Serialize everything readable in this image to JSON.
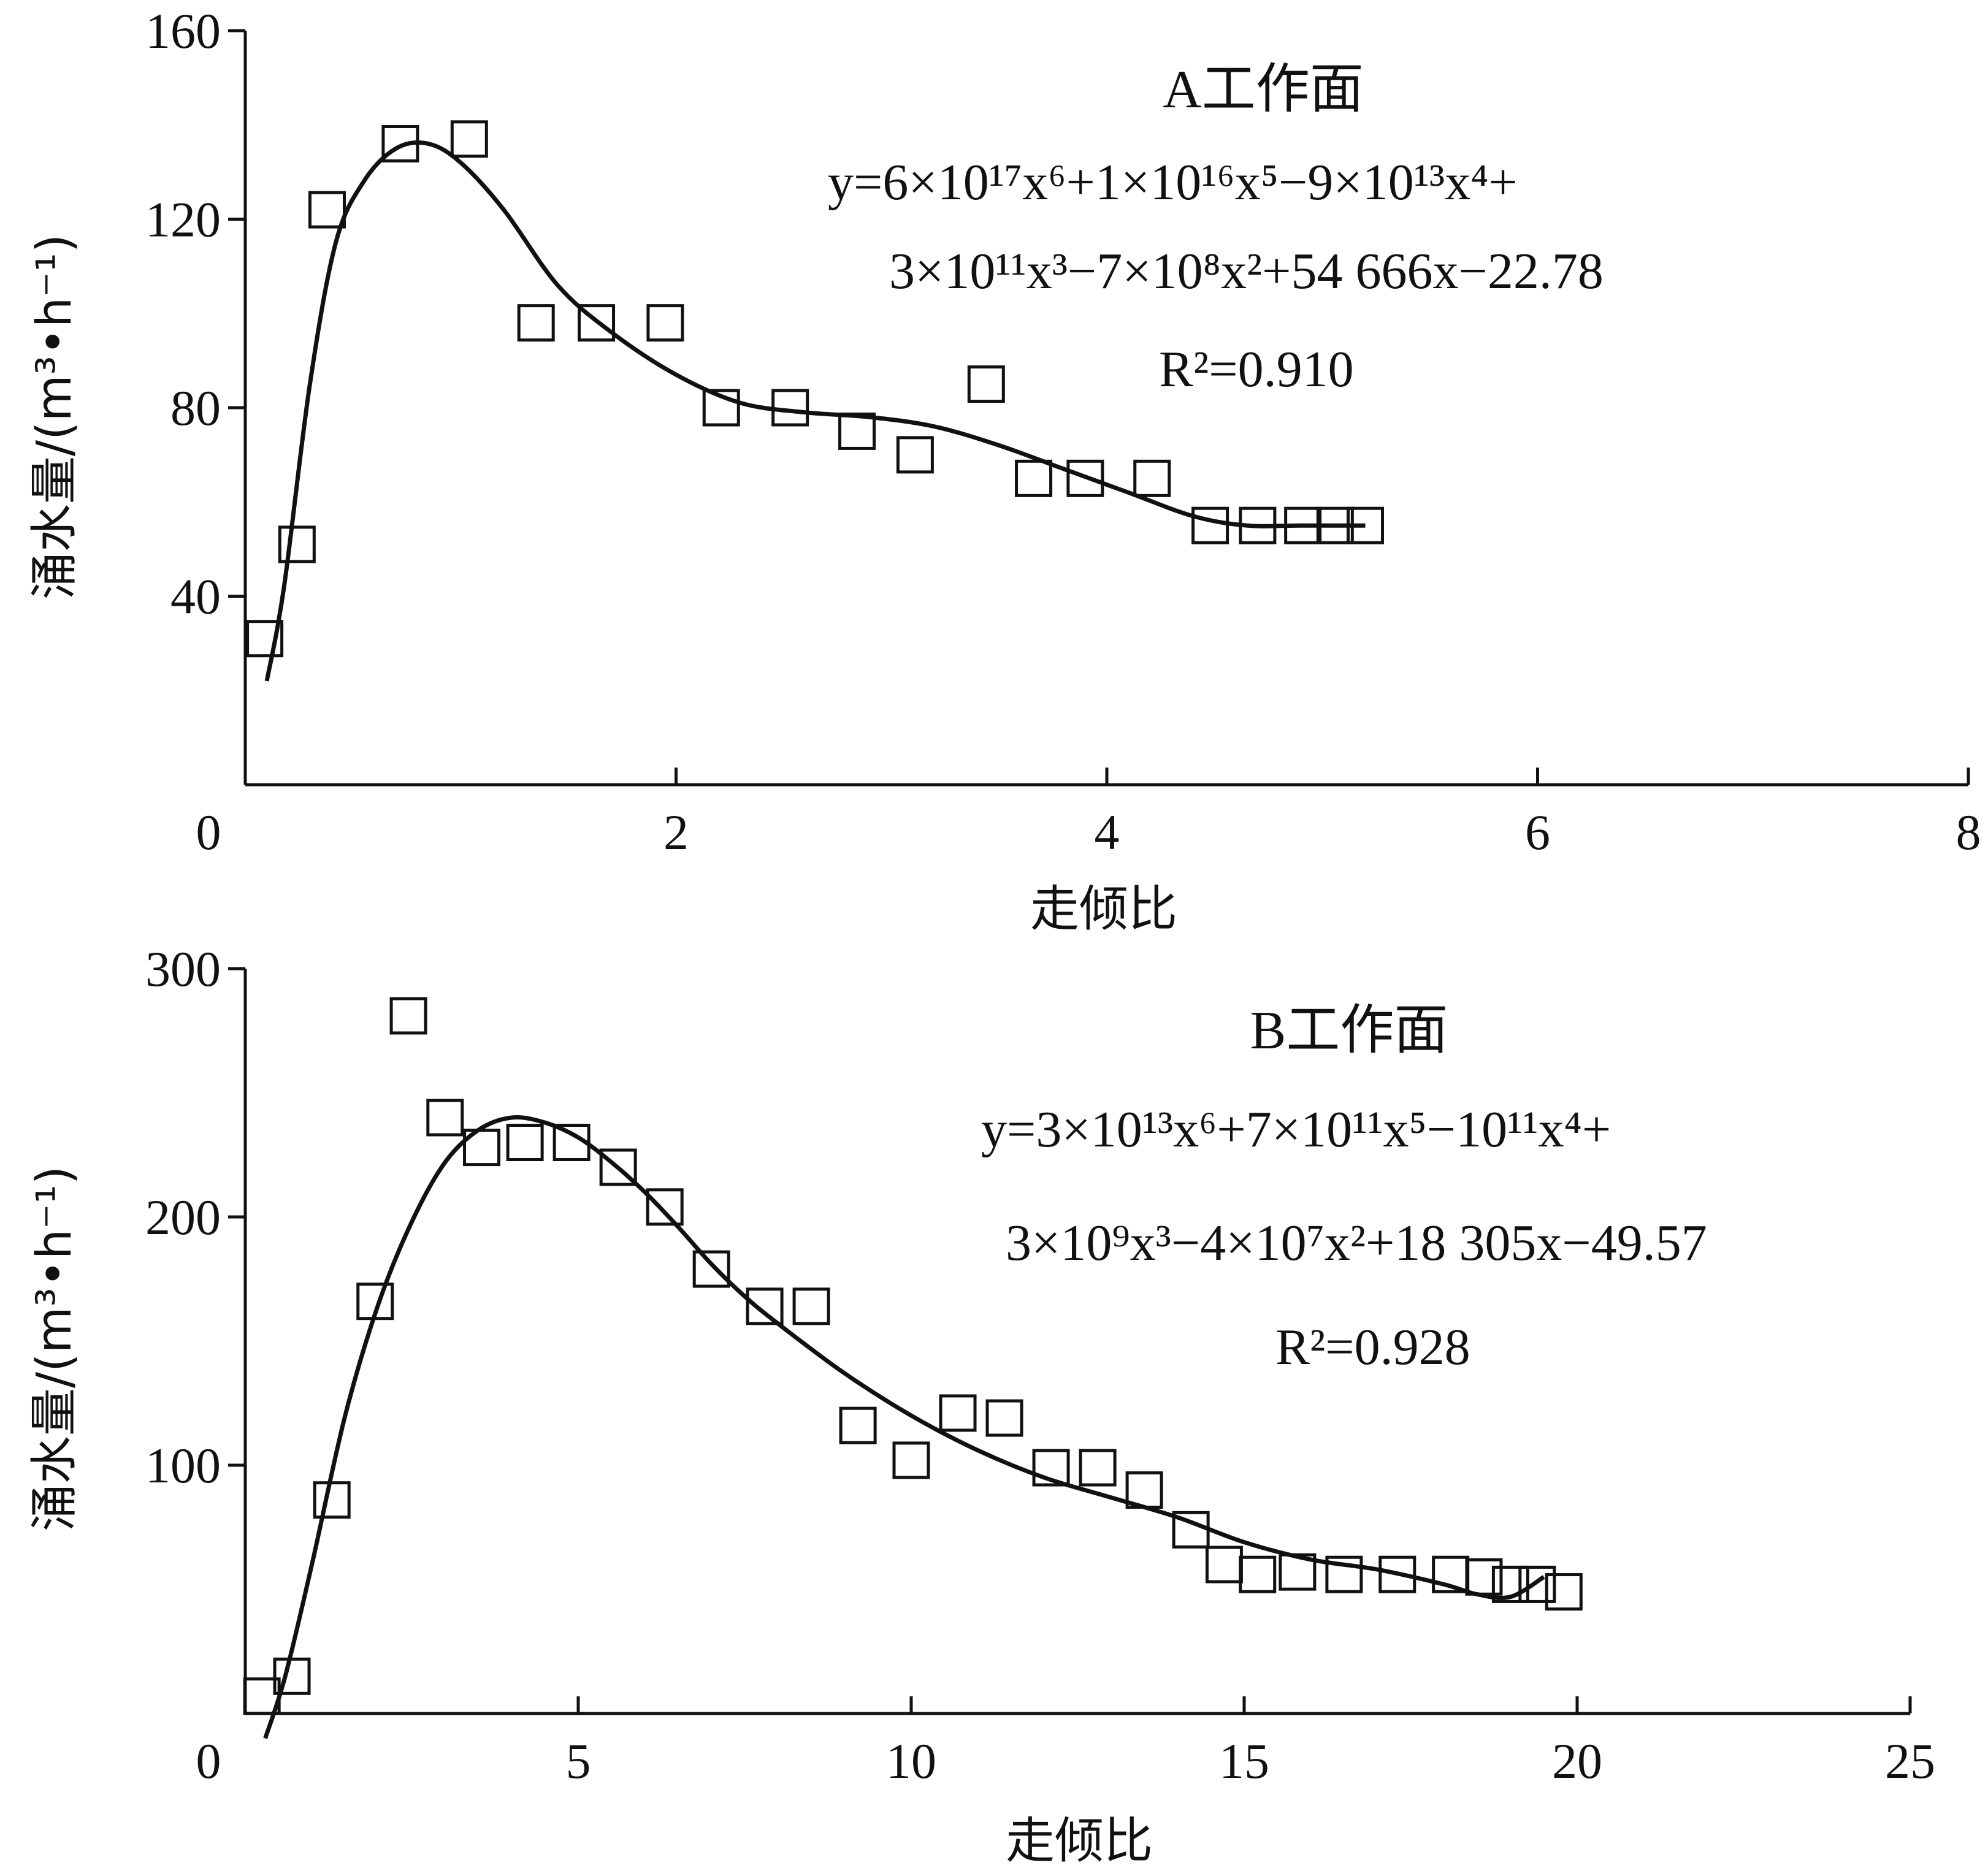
{
  "chart_data": [
    {
      "type": "scatter",
      "title": "A工作面",
      "xlabel": "走倾比",
      "ylabel": "涌水量/(m³•h⁻¹)",
      "xlim": [
        0,
        8
      ],
      "ylim": [
        0,
        160
      ],
      "x_ticks": [
        0,
        2,
        4,
        6,
        8
      ],
      "y_ticks": [
        40,
        80,
        120,
        160
      ],
      "x_tick_labels": [
        "0",
        "2",
        "4",
        "6",
        "8"
      ],
      "y_tick_labels": [
        "40",
        "80",
        "120",
        "160"
      ],
      "equation_line1": "y=6×10¹⁷x⁶+1×10¹⁶x⁵−9×10¹³x⁴+",
      "equation_line2": "3×10¹¹x³−7×10⁸x²+54 666x−22.78",
      "r2": "R²=0.910",
      "points": [
        [
          0.09,
          31
        ],
        [
          0.24,
          51
        ],
        [
          0.38,
          122
        ],
        [
          0.72,
          136
        ],
        [
          1.04,
          137
        ],
        [
          1.35,
          98
        ],
        [
          1.63,
          98
        ],
        [
          1.95,
          98
        ],
        [
          2.21,
          80
        ],
        [
          2.53,
          80
        ],
        [
          2.84,
          75
        ],
        [
          3.11,
          70
        ],
        [
          3.44,
          85
        ],
        [
          3.66,
          65
        ],
        [
          3.9,
          65
        ],
        [
          4.21,
          65
        ],
        [
          4.48,
          55
        ],
        [
          4.7,
          55
        ],
        [
          4.91,
          55
        ],
        [
          5.06,
          55
        ],
        [
          5.2,
          55
        ]
      ],
      "fit_curve": [
        [
          0.1,
          22
        ],
        [
          0.18,
          42
        ],
        [
          0.3,
          85
        ],
        [
          0.42,
          115
        ],
        [
          0.55,
          128
        ],
        [
          0.7,
          135
        ],
        [
          0.85,
          136
        ],
        [
          1.0,
          132
        ],
        [
          1.2,
          122
        ],
        [
          1.45,
          106
        ],
        [
          1.7,
          96
        ],
        [
          2.0,
          87
        ],
        [
          2.3,
          81
        ],
        [
          2.6,
          79
        ],
        [
          2.9,
          78
        ],
        [
          3.2,
          76
        ],
        [
          3.5,
          72
        ],
        [
          3.8,
          67
        ],
        [
          4.1,
          62
        ],
        [
          4.4,
          57
        ],
        [
          4.65,
          55
        ],
        [
          4.9,
          55
        ],
        [
          5.2,
          55
        ]
      ]
    },
    {
      "type": "scatter",
      "title": "B工作面",
      "xlabel": "走倾比",
      "ylabel": "涌水量/(m³•h⁻¹)",
      "xlim": [
        0,
        25
      ],
      "ylim": [
        0,
        300
      ],
      "x_ticks": [
        0,
        5,
        10,
        15,
        20,
        25
      ],
      "y_ticks": [
        100,
        200,
        300
      ],
      "x_tick_labels": [
        "0",
        "5",
        "10",
        "15",
        "20",
        "25"
      ],
      "y_tick_labels": [
        "100",
        "200",
        "300"
      ],
      "equation_line1": "y=3×10¹³x⁶+7×10¹¹x⁵−10¹¹x⁴+",
      "equation_line2": "3×10⁹x³−4×10⁷x²+18 305x−49.57",
      "r2": "R²=0.928",
      "points": [
        [
          0.25,
          7
        ],
        [
          0.7,
          15
        ],
        [
          1.3,
          86
        ],
        [
          1.95,
          166
        ],
        [
          2.45,
          281
        ],
        [
          3.0,
          240
        ],
        [
          3.55,
          228
        ],
        [
          4.2,
          230
        ],
        [
          4.9,
          230
        ],
        [
          5.6,
          220
        ],
        [
          6.3,
          204
        ],
        [
          7.0,
          179
        ],
        [
          7.8,
          164
        ],
        [
          8.5,
          164
        ],
        [
          9.2,
          116
        ],
        [
          10.0,
          102
        ],
        [
          10.7,
          121
        ],
        [
          11.4,
          119
        ],
        [
          12.1,
          99
        ],
        [
          12.8,
          99
        ],
        [
          13.5,
          90
        ],
        [
          14.2,
          74
        ],
        [
          14.7,
          60
        ],
        [
          15.2,
          56
        ],
        [
          15.8,
          57
        ],
        [
          16.5,
          56
        ],
        [
          17.3,
          56
        ],
        [
          18.1,
          56
        ],
        [
          18.6,
          55
        ],
        [
          19.0,
          52
        ],
        [
          19.4,
          52
        ],
        [
          19.8,
          49
        ]
      ],
      "fit_curve": [
        [
          0.3,
          -10
        ],
        [
          0.6,
          15
        ],
        [
          1.0,
          60
        ],
        [
          1.5,
          120
        ],
        [
          2.0,
          165
        ],
        [
          2.5,
          198
        ],
        [
          3.0,
          222
        ],
        [
          3.5,
          235
        ],
        [
          4.0,
          240
        ],
        [
          4.5,
          238
        ],
        [
          5.0,
          232
        ],
        [
          5.5,
          222
        ],
        [
          6.0,
          210
        ],
        [
          6.5,
          196
        ],
        [
          7.0,
          181
        ],
        [
          7.5,
          168
        ],
        [
          8.0,
          157
        ],
        [
          9.0,
          137
        ],
        [
          10.0,
          120
        ],
        [
          11.0,
          106
        ],
        [
          12.0,
          95
        ],
        [
          13.0,
          87
        ],
        [
          14.0,
          79
        ],
        [
          15.0,
          69
        ],
        [
          16.0,
          62
        ],
        [
          17.0,
          58
        ],
        [
          18.0,
          52
        ],
        [
          18.5,
          48
        ],
        [
          19.0,
          47
        ],
        [
          19.5,
          55
        ]
      ]
    }
  ]
}
